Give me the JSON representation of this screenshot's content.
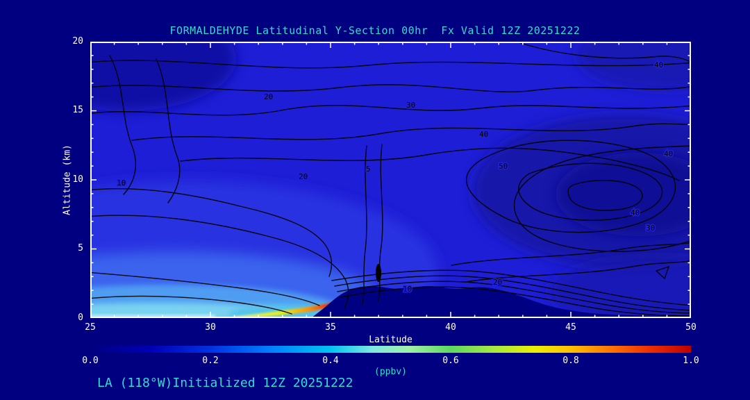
{
  "page": {
    "title": "FORMALDEHYDE Latitudinal Y-Section 00hr  Fx Valid 12Z 20251222",
    "footer_annotation": "LA (118°W)Initialized 12Z 20251222",
    "colors": {
      "background": "#000080",
      "title_text": "#33ddcc",
      "axis_text": "#ffffff",
      "contour_line": "#000000",
      "base_fill": "#1e1ed6",
      "terrain_fill": "#000082"
    }
  },
  "chart_data": {
    "type": "heatmap",
    "title": "FORMALDEHYDE Latitudinal Y-Section 00hr  Fx Valid 12Z 20251222",
    "xlabel": "Latitude",
    "ylabel": "Altitude (km)",
    "xlim": [
      25,
      50
    ],
    "ylim": [
      0,
      20
    ],
    "x_tick_labels": [
      "25",
      "30",
      "35",
      "40",
      "45",
      "50"
    ],
    "y_tick_labels": [
      "0",
      "5",
      "10",
      "15",
      "20"
    ],
    "grid": false,
    "colorbar": {
      "label": "(ppbv)",
      "min": 0.0,
      "max": 1.0,
      "tick_labels": [
        "0.0",
        "0.2",
        "0.4",
        "0.6",
        "0.8",
        "1.0"
      ],
      "gradient": [
        "#000080",
        "#0000c8",
        "#0040ff",
        "#00a0ff",
        "#40d8e8",
        "#90f0c0",
        "#b8f080",
        "#f0f000",
        "#ffa000",
        "#ff4000",
        "#c00000"
      ]
    },
    "overlay_contours": {
      "levels": [
        5,
        10,
        20,
        30,
        40,
        50
      ],
      "labels": [
        "20",
        "30",
        "10",
        "20",
        "5",
        "40",
        "50",
        "40",
        "40",
        "30",
        "40",
        "10",
        "20"
      ]
    },
    "lat": [
      25,
      27.5,
      30,
      32.5,
      35,
      37.5,
      40,
      42.5,
      45,
      47.5,
      50
    ],
    "altitude_km": [
      0,
      2,
      4,
      6,
      8,
      10,
      12,
      14,
      16,
      18,
      20
    ],
    "values_ppbv": [
      [
        0.4,
        0.42,
        0.48,
        0.65,
        0.95,
        0.02,
        0.02,
        0.02,
        0.08,
        0.08,
        0.08
      ],
      [
        0.3,
        0.3,
        0.32,
        0.3,
        0.25,
        0.15,
        0.1,
        0.08,
        0.08,
        0.08,
        0.08
      ],
      [
        0.25,
        0.26,
        0.27,
        0.26,
        0.22,
        0.15,
        0.12,
        0.1,
        0.08,
        0.08,
        0.08
      ],
      [
        0.2,
        0.22,
        0.23,
        0.22,
        0.2,
        0.15,
        0.12,
        0.1,
        0.08,
        0.08,
        0.08
      ],
      [
        0.16,
        0.18,
        0.2,
        0.2,
        0.18,
        0.15,
        0.12,
        0.1,
        0.08,
        0.08,
        0.08
      ],
      [
        0.13,
        0.15,
        0.18,
        0.18,
        0.16,
        0.15,
        0.12,
        0.1,
        0.08,
        0.08,
        0.08
      ],
      [
        0.12,
        0.14,
        0.16,
        0.16,
        0.15,
        0.14,
        0.12,
        0.1,
        0.08,
        0.08,
        0.08
      ],
      [
        0.12,
        0.13,
        0.15,
        0.15,
        0.14,
        0.13,
        0.12,
        0.1,
        0.09,
        0.08,
        0.08
      ],
      [
        0.12,
        0.13,
        0.14,
        0.14,
        0.13,
        0.12,
        0.11,
        0.1,
        0.09,
        0.09,
        0.09
      ],
      [
        0.12,
        0.12,
        0.13,
        0.13,
        0.12,
        0.12,
        0.11,
        0.1,
        0.1,
        0.09,
        0.09
      ],
      [
        0.12,
        0.12,
        0.12,
        0.12,
        0.12,
        0.11,
        0.11,
        0.1,
        0.1,
        0.1,
        0.09
      ]
    ],
    "terrain_top_km": [
      0,
      0,
      0,
      0,
      0.4,
      1.9,
      1.9,
      1.8,
      0.9,
      0.6,
      0.5
    ],
    "hotspot": {
      "lat_range": [
        32,
        34.8
      ],
      "altitude_km_range": [
        0,
        1
      ],
      "max_ppbv": 1.0
    }
  }
}
